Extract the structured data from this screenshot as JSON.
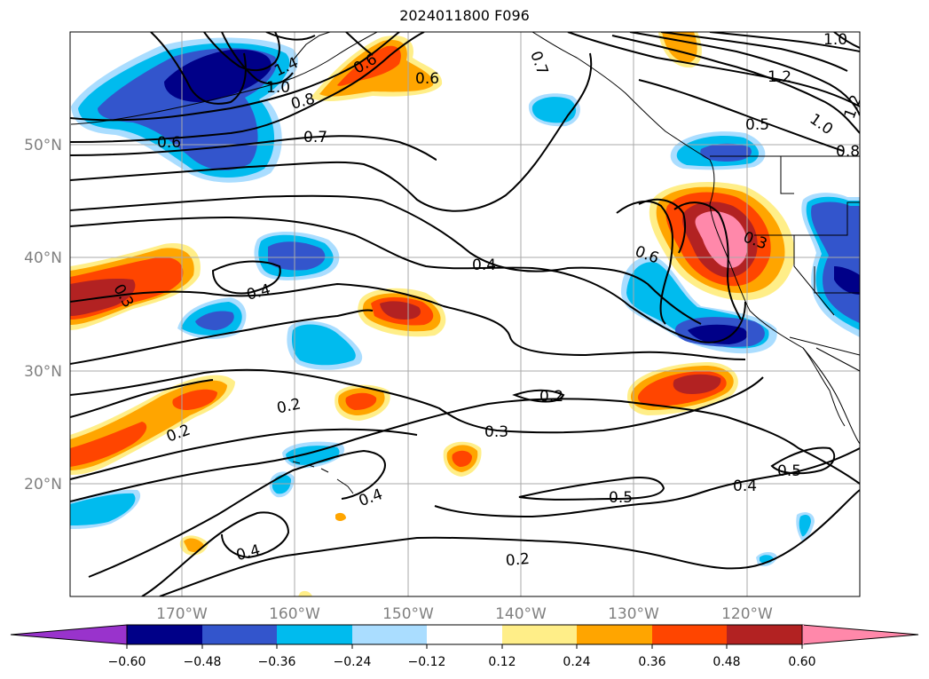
{
  "title": "2024011800 F096",
  "map": {
    "lat_labels": [
      "50°N",
      "40°N",
      "30°N",
      "20°N"
    ],
    "lon_labels": [
      "170°W",
      "160°W",
      "150°W",
      "140°W",
      "130°W",
      "120°W"
    ],
    "contour_labels": [
      "1.0",
      "1.2",
      "1.0",
      "1.2",
      "0.5",
      "0.8",
      "0.7",
      "1.4",
      "1.0",
      "0.6",
      "0.8",
      "0.6",
      "0.7",
      "0.6",
      "0.3",
      "0.6",
      "0.4",
      "0.3",
      "0.4",
      "0.2",
      "0.2",
      "0.3",
      "0.2",
      "0.5",
      "0.4",
      "0.5",
      "0.4",
      "0.4",
      "0.2"
    ],
    "colors": {
      "neg_extend": "#9933cc",
      "n060": "#000088",
      "n048": "#3355cc",
      "n036": "#00bbee",
      "n024": "#aaddff",
      "zero": "#ffffff",
      "p012": "#ffee88",
      "p024": "#ffa500",
      "p036": "#ff4500",
      "p048": "#b22222",
      "p060": "#ff88aa",
      "pos_extend": "#ff88aa"
    }
  },
  "colorbar": {
    "tick_labels": [
      "−0.60",
      "−0.48",
      "−0.36",
      "−0.24",
      "−0.12",
      "0.12",
      "0.24",
      "0.36",
      "0.48",
      "0.60"
    ]
  }
}
